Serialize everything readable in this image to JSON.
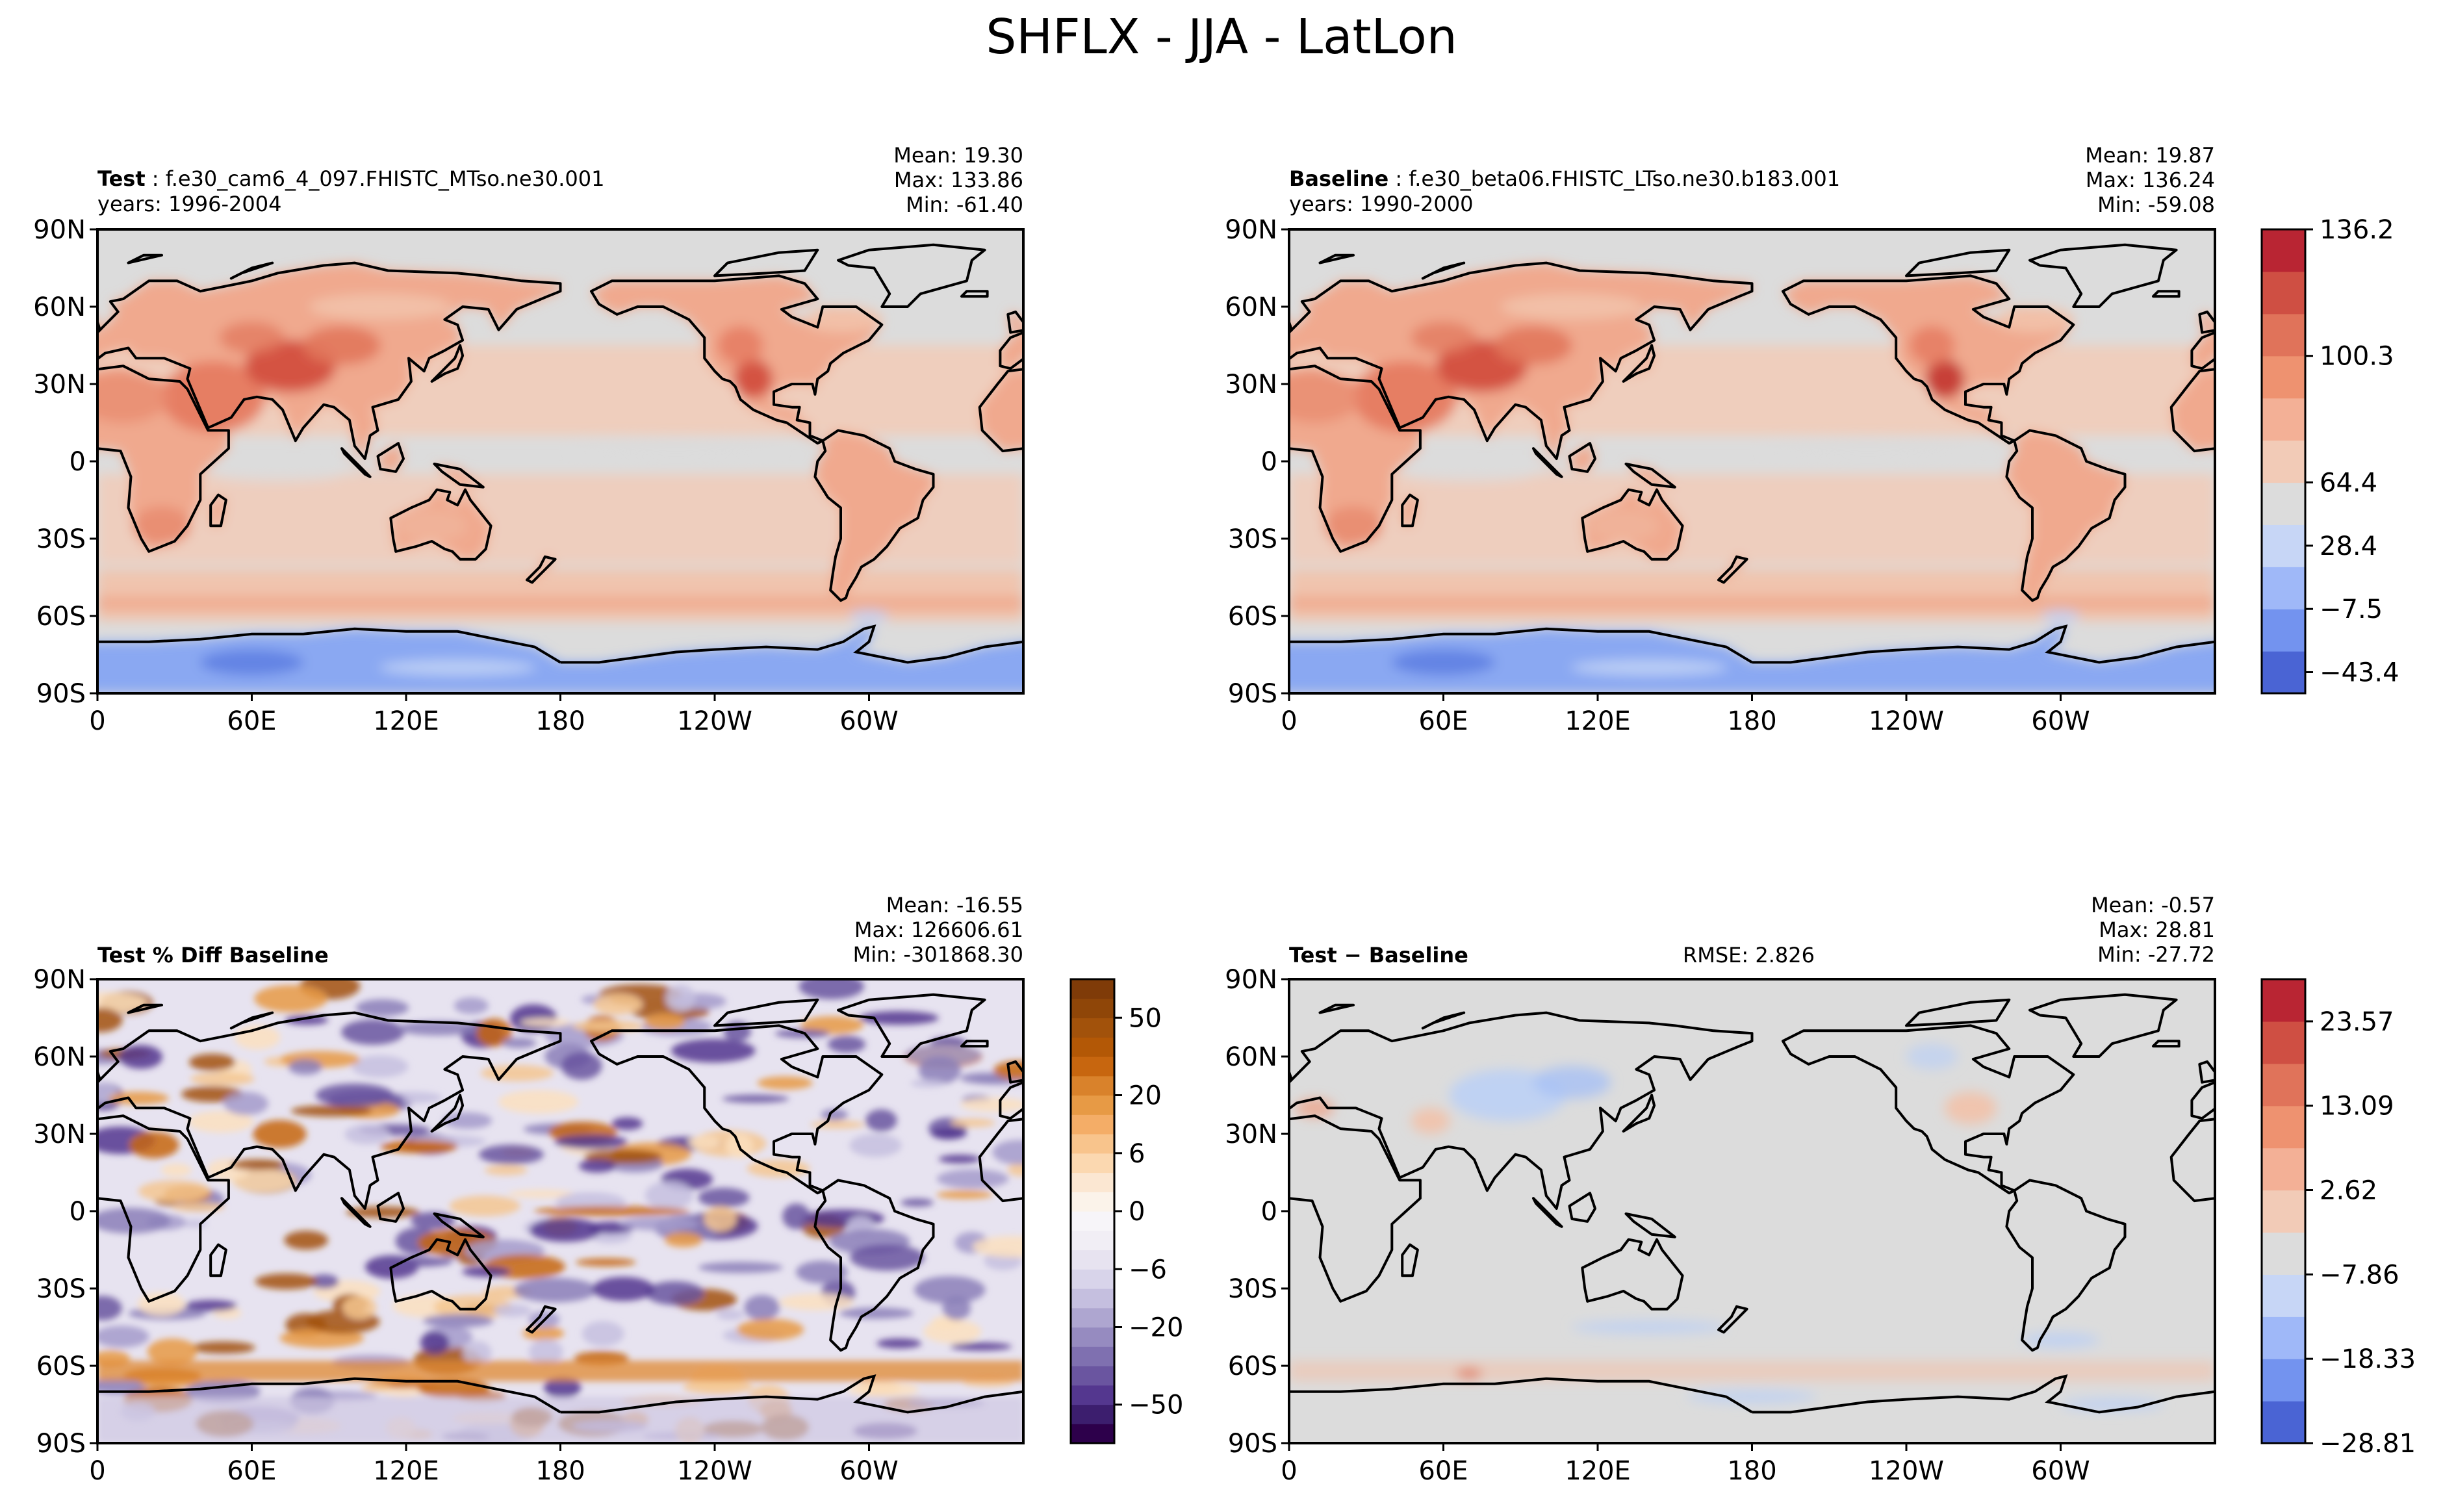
{
  "figure_title": "SHFLX - JJA - LatLon",
  "chart_data": [
    {
      "type": "contour-map",
      "panel": "test",
      "label_bold": "Test",
      "label_rest": " : f.e30_cam6_4_097.FHISTC_MTso.ne30.001",
      "years": "years: 1996-2004",
      "stats": [
        "Mean: 19.30",
        "Max: 133.86",
        "Min: -61.40"
      ],
      "x_ticks": [
        "0",
        "60E",
        "120E",
        "180",
        "120W",
        "60W"
      ],
      "y_ticks": [
        "90N",
        "60N",
        "30N",
        "0",
        "30S",
        "60S",
        "90S"
      ],
      "xlim": [
        0,
        360
      ],
      "ylim": [
        -90,
        90
      ],
      "field_summary": {
        "land_nh": "positive 28-136",
        "ocean": "about 0-28",
        "antarctica": "negative -7.5 to -43"
      }
    },
    {
      "type": "contour-map",
      "panel": "baseline",
      "label_bold": "Baseline",
      "label_rest": " : f.e30_beta06.FHISTC_LTso.ne30.b183.001",
      "years": "years: 1990-2000",
      "stats": [
        "Mean: 19.87",
        "Max: 136.24",
        "Min: -59.08"
      ],
      "x_ticks": [
        "0",
        "60E",
        "120E",
        "180",
        "120W",
        "60W"
      ],
      "y_ticks": [
        "90N",
        "60N",
        "30N",
        "0",
        "30S",
        "60S",
        "90S"
      ],
      "xlim": [
        0,
        360
      ],
      "ylim": [
        -90,
        90
      ],
      "colorbar": {
        "ticks": [
          "136.2",
          "100.3",
          "64.4",
          "28.4",
          "−7.5",
          "−43.4"
        ],
        "levels": [
          -61.4,
          -43.4,
          -25.4,
          -7.5,
          10.5,
          28.4,
          46.4,
          64.4,
          82.3,
          100.3,
          118.3,
          136.2
        ]
      }
    },
    {
      "type": "contour-map",
      "panel": "pct_diff",
      "label_bold": "Test % Diff Baseline",
      "stats": [
        "Mean: -16.55",
        "Max: 126606.61",
        "Min: -301868.30"
      ],
      "x_ticks": [
        "0",
        "60E",
        "120E",
        "180",
        "120W",
        "60W"
      ],
      "y_ticks": [
        "90N",
        "60N",
        "30N",
        "0",
        "30S",
        "60S",
        "90S"
      ],
      "xlim": [
        0,
        360
      ],
      "ylim": [
        -90,
        90
      ],
      "colorbar": {
        "ticks": [
          "50",
          "20",
          "6",
          "0",
          "−6",
          "−20",
          "−50"
        ],
        "levels": [
          -100,
          -75,
          -50,
          -40,
          -30,
          -20,
          -15,
          -10,
          -8,
          -6,
          -4,
          -2,
          0,
          2,
          4,
          6,
          8,
          10,
          15,
          20,
          30,
          40,
          50,
          75,
          100
        ]
      }
    },
    {
      "type": "contour-map",
      "panel": "diff",
      "label_bold": "Test − Baseline",
      "rmse": "RMSE: 2.826",
      "stats": [
        "Mean: -0.57",
        "Max: 28.81",
        "Min: -27.72"
      ],
      "x_ticks": [
        "0",
        "60E",
        "120E",
        "180",
        "120W",
        "60W"
      ],
      "y_ticks": [
        "90N",
        "60N",
        "30N",
        "0",
        "30S",
        "60S",
        "90S"
      ],
      "xlim": [
        0,
        360
      ],
      "ylim": [
        -90,
        90
      ],
      "colorbar": {
        "ticks": [
          "23.57",
          "13.09",
          "2.62",
          "−7.86",
          "−18.33",
          "−28.81"
        ],
        "levels": [
          -28.81,
          -23.57,
          -18.33,
          -13.09,
          -7.86,
          -2.62,
          2.62,
          7.86,
          13.09,
          18.33,
          23.57,
          28.81
        ]
      }
    }
  ]
}
